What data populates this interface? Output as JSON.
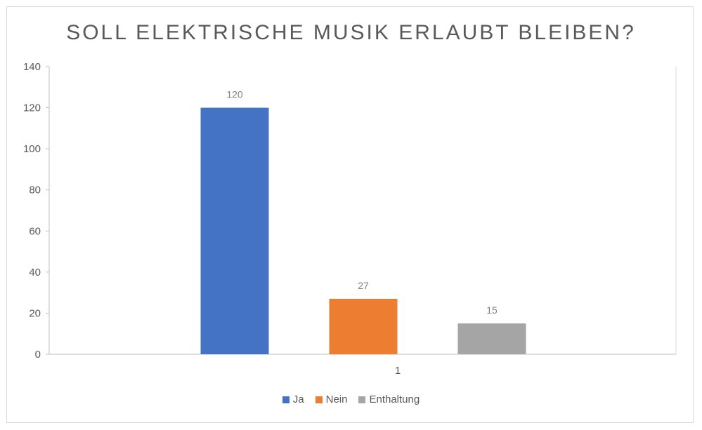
{
  "chart_data": {
    "type": "bar",
    "title": "SOLL ELEKTRISCHE MUSIK ERLAUBT BLEIBEN?",
    "categories": [
      "1"
    ],
    "series": [
      {
        "name": "Ja",
        "values": [
          120
        ],
        "color": "#4472c4"
      },
      {
        "name": "Nein",
        "values": [
          27
        ],
        "color": "#ed7d31"
      },
      {
        "name": "Enthaltung",
        "values": [
          15
        ],
        "color": "#a5a5a5"
      }
    ],
    "ylim": [
      0,
      140
    ],
    "yticks": [
      "0",
      "20",
      "40",
      "60",
      "80",
      "100",
      "120",
      "140"
    ],
    "grid": false,
    "legend_position": "bottom"
  }
}
